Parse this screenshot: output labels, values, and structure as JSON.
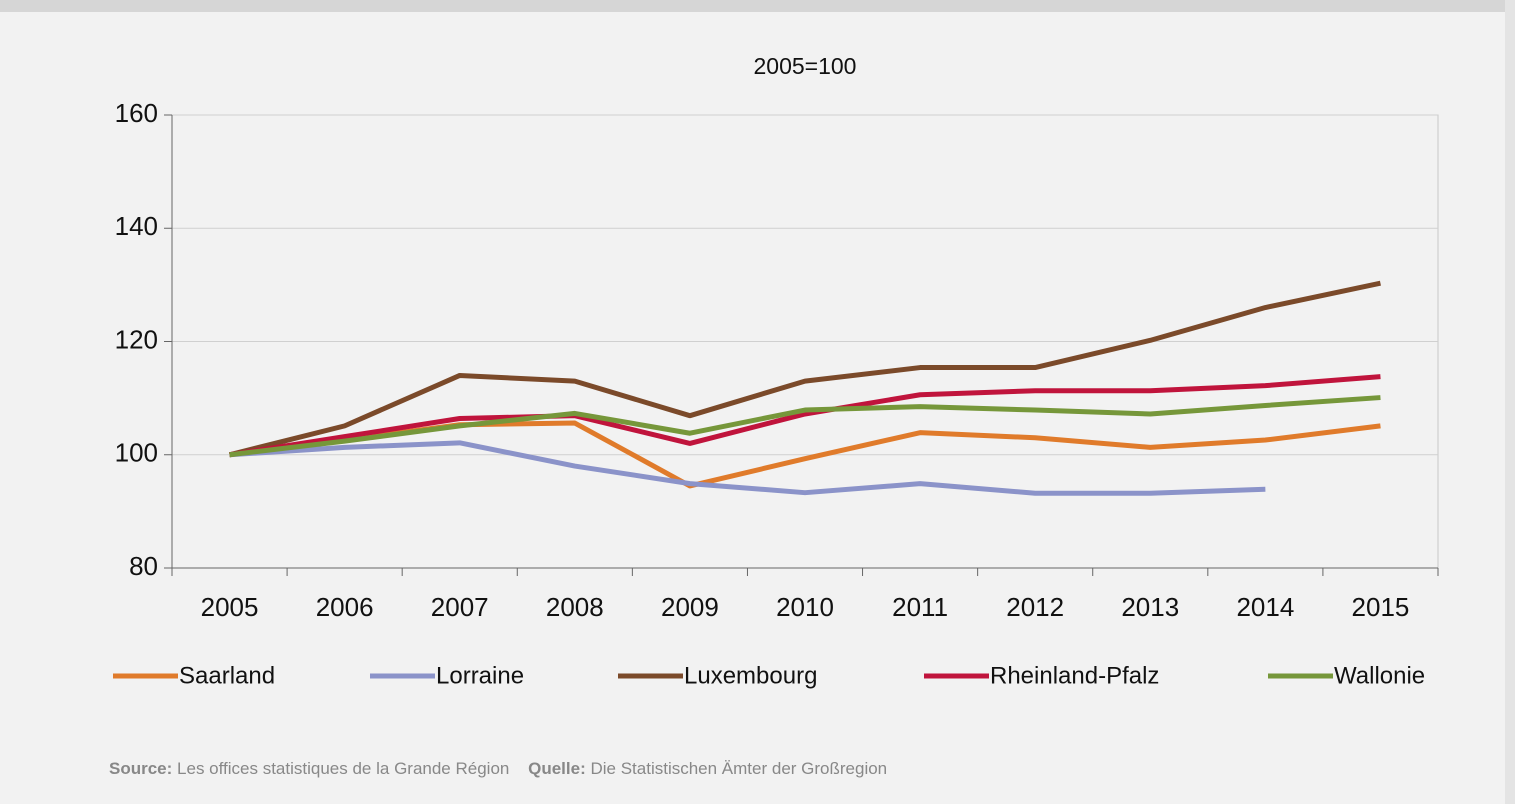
{
  "chart_data": {
    "type": "line",
    "subtitle": "2005=100",
    "categories": [
      "2005",
      "2006",
      "2007",
      "2008",
      "2009",
      "2010",
      "2011",
      "2012",
      "2013",
      "2014",
      "2015"
    ],
    "series": [
      {
        "name": "Saarland",
        "color": "#e07b2b",
        "values": [
          100,
          102.6,
          105.3,
          105.6,
          94.5,
          99.3,
          103.9,
          103.0,
          101.3,
          102.6,
          105.1
        ]
      },
      {
        "name": "Lorraine",
        "color": "#8b93c9",
        "values": [
          100,
          101.3,
          102.1,
          98.0,
          94.9,
          93.3,
          94.9,
          93.2,
          93.2,
          93.9,
          null
        ]
      },
      {
        "name": "Luxembourg",
        "color": "#7b4a2a",
        "values": [
          100,
          105.1,
          114.0,
          113.0,
          106.9,
          113.0,
          115.4,
          115.4,
          120.2,
          126.0,
          130.3
        ]
      },
      {
        "name": "Rheinland-Pfalz",
        "color": "#c0143c",
        "values": [
          100,
          103.2,
          106.4,
          106.9,
          102.0,
          107.2,
          110.6,
          111.3,
          111.3,
          112.2,
          113.8
        ]
      },
      {
        "name": "Wallonie",
        "color": "#76973a",
        "values": [
          100,
          102.4,
          105.1,
          107.3,
          103.8,
          107.9,
          108.5,
          107.9,
          107.2,
          108.7,
          110.1
        ]
      }
    ],
    "ylim": [
      80,
      160
    ],
    "yticks": [
      80,
      100,
      120,
      140,
      160
    ],
    "grid": true,
    "legend": "bottom"
  },
  "footer": {
    "source_label": "Source:",
    "source_text": "Les offices statistiques de la Grande Région",
    "quelle_label": "Quelle:",
    "quelle_text": "Die Statistischen Ämter der Großregion"
  }
}
